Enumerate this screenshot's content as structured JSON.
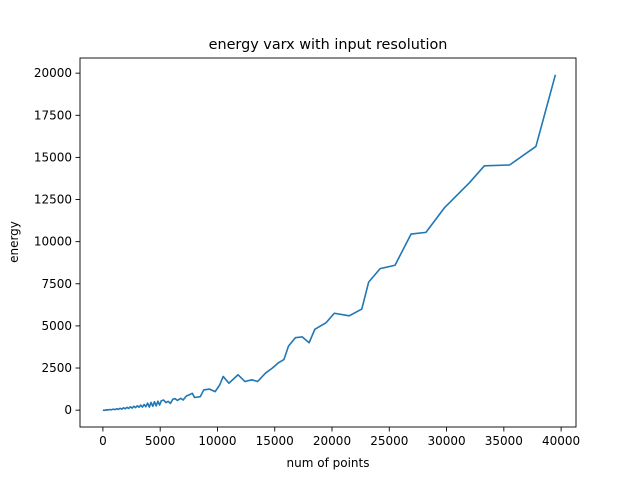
{
  "chart_data": {
    "type": "line",
    "title": "energy varx with input resolution",
    "xlabel": "num of points",
    "ylabel": "energy",
    "xlim": [
      -2000,
      41300
    ],
    "ylim": [
      -1000,
      20900
    ],
    "xticks": [
      0,
      5000,
      10000,
      15000,
      20000,
      25000,
      30000,
      35000,
      40000
    ],
    "yticks": [
      0,
      2500,
      5000,
      7500,
      10000,
      12500,
      15000,
      17500,
      20000
    ],
    "grid": false,
    "color": "#1f77b4",
    "series": [
      {
        "x": [
          0,
          150,
          300,
          450,
          600,
          750,
          900,
          1050,
          1200,
          1350,
          1500,
          1650,
          1800,
          1950,
          2100,
          2250,
          2400,
          2550,
          2700,
          2850,
          3000,
          3150,
          3300,
          3450,
          3600,
          3750,
          3900,
          4050,
          4200,
          4350,
          4500,
          4650,
          4800,
          4950,
          5100,
          5300,
          5500,
          5700,
          5900,
          6100,
          6300,
          6500,
          6800,
          7000,
          7300,
          7500,
          7800,
          8000,
          8500,
          8800,
          9300,
          9800,
          10200,
          10500,
          11000,
          11800,
          12400,
          13000,
          13500,
          14200,
          14800,
          15300,
          15800,
          16200,
          16800,
          17400,
          18000,
          18500,
          19500,
          20200,
          21500,
          22600,
          23200,
          24200,
          25500,
          26900,
          28200,
          29800,
          32000,
          33300,
          35500,
          37800,
          39500
        ],
        "y": [
          0,
          -10,
          20,
          10,
          40,
          20,
          60,
          30,
          80,
          50,
          110,
          60,
          140,
          80,
          170,
          100,
          200,
          120,
          230,
          150,
          260,
          170,
          300,
          180,
          340,
          200,
          420,
          180,
          460,
          230,
          500,
          250,
          530,
          300,
          560,
          600,
          450,
          520,
          400,
          650,
          680,
          580,
          700,
          600,
          850,
          900,
          1000,
          750,
          800,
          1200,
          1250,
          1100,
          1500,
          2000,
          1600,
          2100,
          1700,
          1800,
          1700,
          2200,
          2500,
          2800,
          3000,
          3800,
          4300,
          4350,
          4000,
          4800,
          5200,
          5750,
          5600,
          6000,
          7600,
          8400,
          8600,
          10450,
          10550,
          12000,
          13500,
          14500,
          14550,
          15650,
          19900
        ]
      }
    ]
  }
}
